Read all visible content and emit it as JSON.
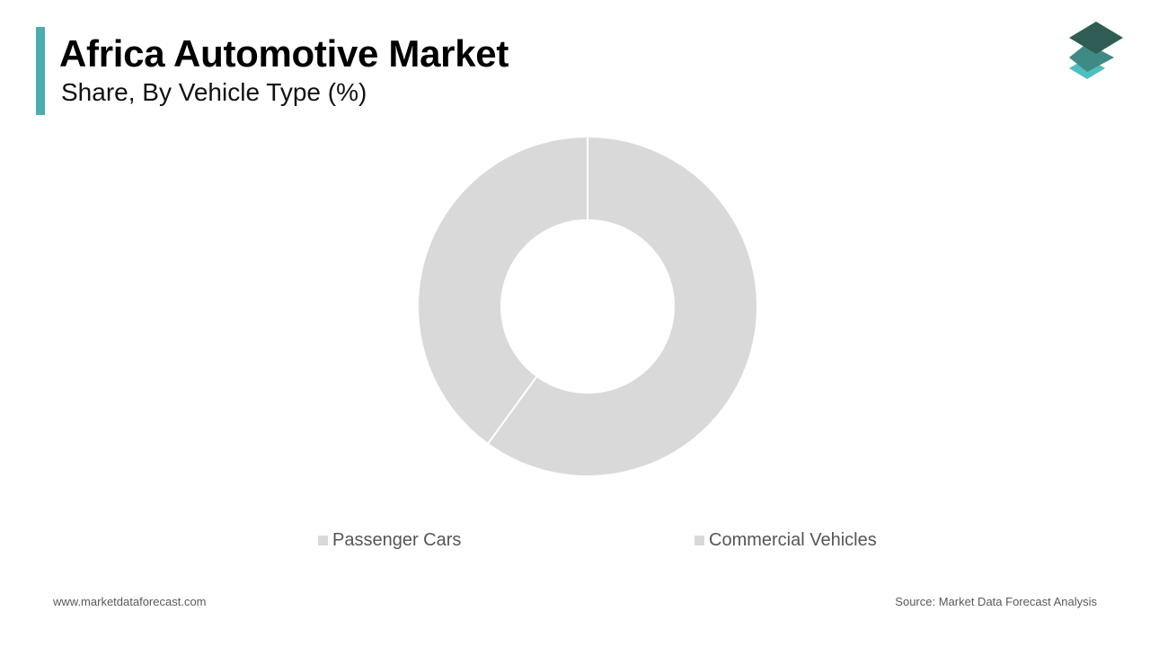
{
  "header": {
    "title": "Africa Automotive Market",
    "subtitle": "Share, By Vehicle Type (%)"
  },
  "colors": {
    "accent": "#4aaeae",
    "slice": "#d9d9d9",
    "slice_border": "#ffffff",
    "logo_top": "#2f5d56",
    "logo_mid": "#3f8a84",
    "logo_bottom": "#4dbfbe"
  },
  "icons": {
    "logo": "stacked-layers-icon"
  },
  "chart_data": {
    "type": "pie",
    "donut": true,
    "categories": [
      "Passenger Cars",
      "Commercial Vehicles"
    ],
    "values": [
      60,
      40
    ],
    "legend_position": "bottom"
  },
  "footer": {
    "website": "www.marketdataforecast.com",
    "source": "Source: Market Data Forecast Analysis"
  }
}
